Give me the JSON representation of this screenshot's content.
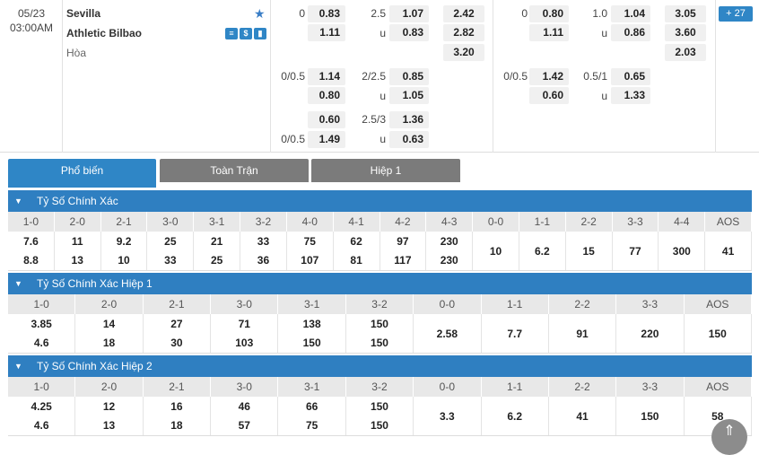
{
  "match": {
    "date": "05/23",
    "time": "03:00AM",
    "home": "Sevilla",
    "away": "Athletic Bilbao",
    "draw": "Hòa",
    "more_count": "+ 27"
  },
  "ft": {
    "hdp": [
      {
        "line": "0",
        "home": "0.83",
        "away": "1.11"
      },
      {
        "line": "0/0.5",
        "home": "1.14",
        "away": "0.80"
      },
      {
        "line": "0/0.5",
        "home": "0.60",
        "away": "1.49"
      }
    ],
    "ou": [
      {
        "line": "2.5",
        "over": "1.07",
        "u": "u",
        "under": "0.83"
      },
      {
        "line": "2/2.5",
        "over": "0.85",
        "u": "u",
        "under": "1.05"
      },
      {
        "line": "2.5/3",
        "over": "1.36",
        "u": "u",
        "under": "0.63"
      }
    ],
    "x12": [
      "2.42",
      "2.82",
      "3.20"
    ]
  },
  "h1": {
    "hdp": [
      {
        "line": "0",
        "home": "0.80",
        "away": "1.11"
      },
      {
        "line": "0/0.5",
        "home": "1.42",
        "away": "0.60"
      }
    ],
    "ou": [
      {
        "line": "1.0",
        "over": "1.04",
        "u": "u",
        "under": "0.86"
      },
      {
        "line": "0.5/1",
        "over": "0.65",
        "u": "u",
        "under": "1.33"
      }
    ],
    "x12": [
      "3.05",
      "3.60",
      "2.03"
    ]
  },
  "tabs": [
    "Phổ biến",
    "Toàn Trận",
    "Hiệp 1"
  ],
  "sections": [
    {
      "title": "Tỷ Số Chính Xác",
      "headers": [
        "1-0",
        "2-0",
        "2-1",
        "3-0",
        "3-1",
        "3-2",
        "4-0",
        "4-1",
        "4-2",
        "4-3",
        "0-0",
        "1-1",
        "2-2",
        "3-3",
        "4-4",
        "AOS"
      ],
      "home": [
        "7.6",
        "11",
        "9.2",
        "25",
        "21",
        "33",
        "75",
        "62",
        "97",
        "230"
      ],
      "away": [
        "8.8",
        "13",
        "10",
        "33",
        "25",
        "36",
        "107",
        "81",
        "117",
        "230"
      ],
      "draws": [
        "10",
        "6.2",
        "15",
        "77",
        "300",
        "41"
      ]
    },
    {
      "title": "Tỷ Số Chính Xác Hiệp 1",
      "headers": [
        "1-0",
        "2-0",
        "2-1",
        "3-0",
        "3-1",
        "3-2",
        "0-0",
        "1-1",
        "2-2",
        "3-3",
        "AOS"
      ],
      "home": [
        "3.85",
        "14",
        "27",
        "71",
        "138",
        "150"
      ],
      "away": [
        "4.6",
        "18",
        "30",
        "103",
        "150",
        "150"
      ],
      "draws": [
        "2.58",
        "7.7",
        "91",
        "220",
        "150"
      ]
    },
    {
      "title": "Tỷ Số Chính Xác Hiệp 2",
      "headers": [
        "1-0",
        "2-0",
        "2-1",
        "3-0",
        "3-1",
        "3-2",
        "0-0",
        "1-1",
        "2-2",
        "3-3",
        "AOS"
      ],
      "home": [
        "4.25",
        "12",
        "16",
        "46",
        "66",
        "150"
      ],
      "away": [
        "4.6",
        "13",
        "18",
        "57",
        "75",
        "150"
      ],
      "draws": [
        "3.3",
        "6.2",
        "41",
        "150",
        "58"
      ]
    }
  ]
}
